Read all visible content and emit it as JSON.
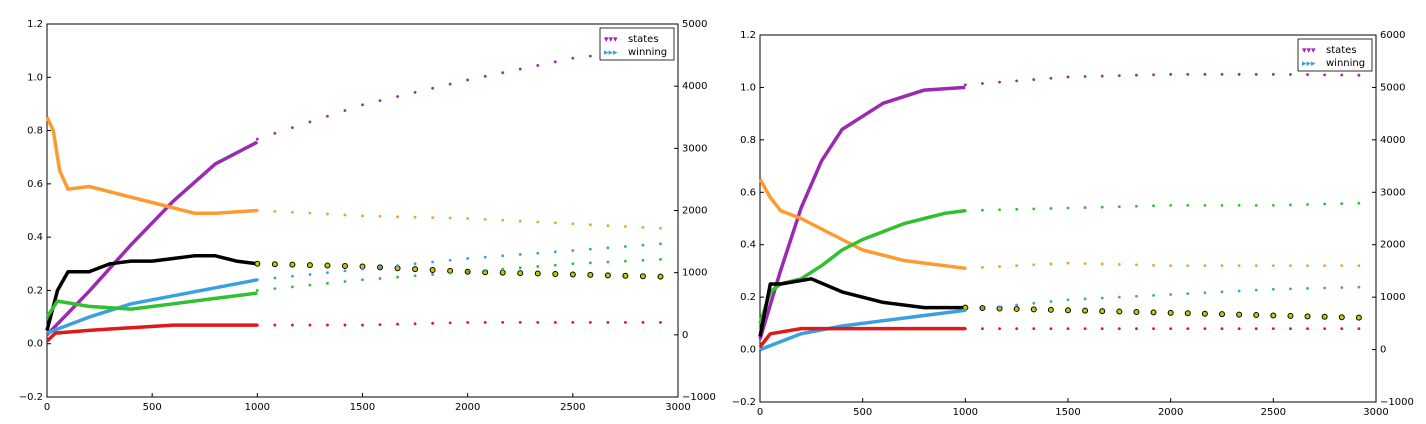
{
  "chart_data": [
    {
      "type": "line",
      "xlim": [
        0,
        3000
      ],
      "ylim": [
        -0.2,
        1.2
      ],
      "y2lim": [
        -1000,
        5000
      ],
      "x_ticks": [
        "0",
        "500",
        "1000",
        "1500",
        "2000",
        "2500",
        "3000"
      ],
      "y_ticks": [
        "−0.2",
        "0.0",
        "0.2",
        "0.4",
        "0.6",
        "0.8",
        "1.0",
        "1.2"
      ],
      "y2_ticks": [
        "−1000",
        "0",
        "1000",
        "2000",
        "3000",
        "4000",
        "5000"
      ],
      "legend": {
        "position": "top-right",
        "entries": [
          {
            "name": "states",
            "color": "#a020c0",
            "marker": "▾"
          },
          {
            "name": "winning",
            "color": "#3aa0e0",
            "marker": "▸"
          }
        ]
      },
      "series": [
        {
          "color": "#9a2ab0",
          "axis": "right",
          "solid": [
            [
              0,
              0
            ],
            [
              200,
              700
            ],
            [
              400,
              1450
            ],
            [
              600,
              2150
            ],
            [
              800,
              2750
            ],
            [
              1000,
              3100
            ]
          ],
          "dotted": [
            [
              1000,
              3150
            ],
            [
              1500,
              3700
            ],
            [
              2000,
              4100
            ],
            [
              2500,
              4450
            ],
            [
              3000,
              4650
            ]
          ]
        },
        {
          "color": "#ff9a30",
          "axis": "left",
          "solid": [
            [
              0,
              0.85
            ],
            [
              30,
              0.8
            ],
            [
              60,
              0.65
            ],
            [
              100,
              0.58
            ],
            [
              200,
              0.59
            ],
            [
              300,
              0.57
            ],
            [
              400,
              0.55
            ],
            [
              500,
              0.53
            ],
            [
              600,
              0.51
            ],
            [
              700,
              0.49
            ],
            [
              800,
              0.49
            ],
            [
              1000,
              0.5
            ]
          ],
          "dotted": [
            [
              1000,
              0.5
            ],
            [
              1500,
              0.48
            ],
            [
              2000,
              0.47
            ],
            [
              2500,
              0.45
            ],
            [
              3000,
              0.43
            ]
          ]
        },
        {
          "color": "#000000",
          "axis": "left",
          "solid": [
            [
              0,
              0.05
            ],
            [
              50,
              0.2
            ],
            [
              100,
              0.27
            ],
            [
              200,
              0.27
            ],
            [
              300,
              0.3
            ],
            [
              400,
              0.31
            ],
            [
              500,
              0.31
            ],
            [
              600,
              0.32
            ],
            [
              700,
              0.33
            ],
            [
              800,
              0.33
            ],
            [
              900,
              0.31
            ],
            [
              1000,
              0.3
            ]
          ],
          "dotted": [
            [
              1000,
              0.3
            ],
            [
              1500,
              0.29
            ],
            [
              2000,
              0.27
            ],
            [
              2500,
              0.26
            ],
            [
              3000,
              0.25
            ]
          ]
        },
        {
          "color": "#3aa0e0",
          "axis": "left",
          "solid": [
            [
              0,
              0.04
            ],
            [
              200,
              0.1
            ],
            [
              400,
              0.15
            ],
            [
              600,
              0.18
            ],
            [
              800,
              0.21
            ],
            [
              1000,
              0.24
            ]
          ],
          "dotted": [
            [
              1000,
              0.24
            ],
            [
              1500,
              0.28
            ],
            [
              2000,
              0.32
            ],
            [
              2500,
              0.35
            ],
            [
              3000,
              0.38
            ]
          ]
        },
        {
          "color": "#30c030",
          "axis": "left",
          "solid": [
            [
              0,
              0.1
            ],
            [
              50,
              0.16
            ],
            [
              200,
              0.14
            ],
            [
              400,
              0.13
            ],
            [
              600,
              0.15
            ],
            [
              800,
              0.17
            ],
            [
              1000,
              0.19
            ]
          ],
          "dotted": [
            [
              1000,
              0.2
            ],
            [
              1500,
              0.24
            ],
            [
              2000,
              0.27
            ],
            [
              2500,
              0.3
            ],
            [
              3000,
              0.32
            ]
          ]
        },
        {
          "color": "#e01818",
          "axis": "left",
          "solid": [
            [
              0,
              0.01
            ],
            [
              40,
              0.04
            ],
            [
              200,
              0.05
            ],
            [
              400,
              0.06
            ],
            [
              600,
              0.07
            ],
            [
              800,
              0.07
            ],
            [
              1000,
              0.07
            ]
          ],
          "dotted": [
            [
              1000,
              0.07
            ],
            [
              1500,
              0.07
            ],
            [
              2000,
              0.08
            ],
            [
              2500,
              0.08
            ],
            [
              3000,
              0.08
            ]
          ]
        }
      ]
    },
    {
      "type": "line",
      "xlim": [
        0,
        3000
      ],
      "ylim": [
        -0.2,
        1.2
      ],
      "y2lim": [
        -1000,
        6000
      ],
      "x_ticks": [
        "0",
        "500",
        "1000",
        "1500",
        "2000",
        "2500",
        "3000"
      ],
      "y_ticks": [
        "−0.2",
        "0.0",
        "0.2",
        "0.4",
        "0.6",
        "0.8",
        "1.0",
        "1.2"
      ],
      "y2_ticks": [
        "−1000",
        "0",
        "1000",
        "2000",
        "3000",
        "4000",
        "5000",
        "6000"
      ],
      "legend": {
        "position": "top-right",
        "entries": [
          {
            "name": "states",
            "color": "#a020c0",
            "marker": "▾"
          },
          {
            "name": "winning",
            "color": "#3aa0e0",
            "marker": "▸"
          }
        ]
      },
      "series": [
        {
          "color": "#9a2ab0",
          "axis": "right",
          "solid": [
            [
              0,
              200
            ],
            [
              100,
              1500
            ],
            [
              200,
              2700
            ],
            [
              300,
              3600
            ],
            [
              400,
              4200
            ],
            [
              600,
              4700
            ],
            [
              800,
              4950
            ],
            [
              1000,
              5000
            ]
          ],
          "dotted": [
            [
              1000,
              5050
            ],
            [
              1500,
              5200
            ],
            [
              2000,
              5250
            ],
            [
              2500,
              5250
            ],
            [
              3000,
              5230
            ]
          ]
        },
        {
          "color": "#ff9a30",
          "axis": "left",
          "solid": [
            [
              0,
              0.65
            ],
            [
              50,
              0.58
            ],
            [
              100,
              0.53
            ],
            [
              200,
              0.5
            ],
            [
              300,
              0.46
            ],
            [
              400,
              0.42
            ],
            [
              500,
              0.38
            ],
            [
              600,
              0.36
            ],
            [
              700,
              0.34
            ],
            [
              800,
              0.33
            ],
            [
              900,
              0.32
            ],
            [
              1000,
              0.31
            ]
          ],
          "dotted": [
            [
              1000,
              0.31
            ],
            [
              1500,
              0.33
            ],
            [
              2000,
              0.32
            ],
            [
              2500,
              0.32
            ],
            [
              3000,
              0.32
            ]
          ]
        },
        {
          "color": "#30c030",
          "axis": "left",
          "solid": [
            [
              0,
              0.1
            ],
            [
              50,
              0.22
            ],
            [
              100,
              0.25
            ],
            [
              200,
              0.27
            ],
            [
              300,
              0.32
            ],
            [
              400,
              0.38
            ],
            [
              500,
              0.42
            ],
            [
              600,
              0.45
            ],
            [
              700,
              0.48
            ],
            [
              800,
              0.5
            ],
            [
              900,
              0.52
            ],
            [
              1000,
              0.53
            ]
          ],
          "dotted": [
            [
              1000,
              0.53
            ],
            [
              1500,
              0.54
            ],
            [
              2000,
              0.55
            ],
            [
              2500,
              0.55
            ],
            [
              3000,
              0.56
            ]
          ]
        },
        {
          "color": "#000000",
          "axis": "left",
          "solid": [
            [
              0,
              0.05
            ],
            [
              50,
              0.25
            ],
            [
              100,
              0.25
            ],
            [
              250,
              0.27
            ],
            [
              400,
              0.22
            ],
            [
              600,
              0.18
            ],
            [
              800,
              0.16
            ],
            [
              1000,
              0.16
            ]
          ],
          "dotted": [
            [
              1000,
              0.16
            ],
            [
              1500,
              0.15
            ],
            [
              2000,
              0.14
            ],
            [
              2500,
              0.13
            ],
            [
              3000,
              0.12
            ]
          ]
        },
        {
          "color": "#3aa0e0",
          "axis": "left",
          "solid": [
            [
              0,
              0.0
            ],
            [
              200,
              0.06
            ],
            [
              400,
              0.09
            ],
            [
              600,
              0.11
            ],
            [
              800,
              0.13
            ],
            [
              1000,
              0.15
            ]
          ],
          "dotted": [
            [
              1000,
              0.15
            ],
            [
              1500,
              0.19
            ],
            [
              2000,
              0.21
            ],
            [
              2500,
              0.23
            ],
            [
              3000,
              0.24
            ]
          ]
        },
        {
          "color": "#e01818",
          "axis": "left",
          "solid": [
            [
              0,
              0.01
            ],
            [
              50,
              0.06
            ],
            [
              200,
              0.08
            ],
            [
              400,
              0.08
            ],
            [
              600,
              0.08
            ],
            [
              800,
              0.08
            ],
            [
              1000,
              0.08
            ]
          ],
          "dotted": [
            [
              1000,
              0.08
            ],
            [
              1500,
              0.08
            ],
            [
              2000,
              0.08
            ],
            [
              2500,
              0.08
            ],
            [
              3000,
              0.08
            ]
          ]
        }
      ]
    }
  ]
}
